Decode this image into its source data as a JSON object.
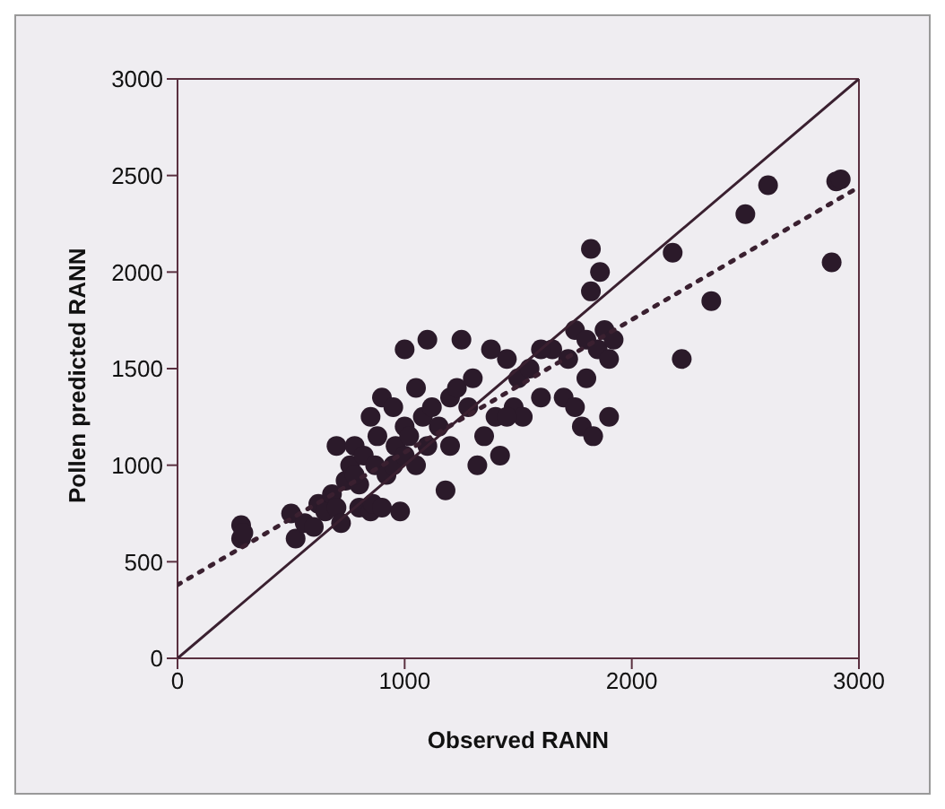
{
  "chart_data": {
    "type": "scatter",
    "xlabel": "Observed RANN",
    "ylabel": "Pollen predicted RANN",
    "xlim": [
      0,
      3000
    ],
    "ylim": [
      0,
      3000
    ],
    "xticks": [
      0,
      1000,
      2000,
      3000
    ],
    "yticks": [
      0,
      500,
      1000,
      1500,
      2000,
      2500,
      3000
    ],
    "series": [
      {
        "marker": "circle",
        "color": "#2b1a2a",
        "x": [
          280,
          280,
          290,
          500,
          520,
          560,
          600,
          620,
          650,
          680,
          700,
          700,
          720,
          740,
          760,
          780,
          800,
          800,
          820,
          850,
          860,
          870,
          880,
          900,
          920,
          950,
          960,
          980,
          1000,
          1000,
          1020,
          1050,
          1080,
          1100,
          1120,
          1150,
          1180,
          1200,
          1200,
          1230,
          1250,
          1280,
          1300,
          1320,
          1350,
          1380,
          1400,
          1420,
          1450,
          1480,
          1500,
          1520,
          1550,
          1600,
          1650,
          1700,
          1720,
          1750,
          1750,
          1780,
          1800,
          1800,
          1820,
          1820,
          1830,
          1850,
          1860,
          1880,
          1900,
          1900,
          1920,
          1100,
          1000,
          900,
          850,
          2180,
          2220,
          2350,
          2500,
          2600,
          2880,
          2900,
          2920,
          1600,
          1450,
          1050,
          950,
          780
        ],
        "values": [
          690,
          620,
          650,
          750,
          620,
          700,
          680,
          800,
          760,
          850,
          780,
          1100,
          700,
          920,
          1000,
          1100,
          780,
          900,
          1050,
          760,
          800,
          1000,
          1150,
          780,
          950,
          1000,
          1100,
          760,
          1050,
          1200,
          1150,
          1000,
          1250,
          1100,
          1300,
          1200,
          870,
          1100,
          1350,
          1400,
          1650,
          1300,
          1450,
          1000,
          1150,
          1600,
          1250,
          1050,
          1550,
          1300,
          1450,
          1250,
          1500,
          1350,
          1600,
          1350,
          1550,
          1700,
          1300,
          1200,
          1450,
          1650,
          1900,
          2120,
          1150,
          1600,
          2000,
          1700,
          1550,
          1250,
          1650,
          1650,
          1600,
          1350,
          1250,
          2100,
          1550,
          1850,
          2300,
          2450,
          2050,
          2470,
          2480,
          1600,
          1250,
          1400,
          1300,
          950
        ]
      },
      {
        "type": "line",
        "marker": "none",
        "line_style": "solid",
        "color": "#3a2030",
        "x": [
          0,
          3000
        ],
        "values": [
          0,
          3000
        ]
      },
      {
        "type": "line",
        "marker": "none",
        "line_style": "dotted",
        "color": "#3a2030",
        "x": [
          0,
          3000
        ],
        "values": [
          380,
          2440
        ]
      }
    ]
  }
}
